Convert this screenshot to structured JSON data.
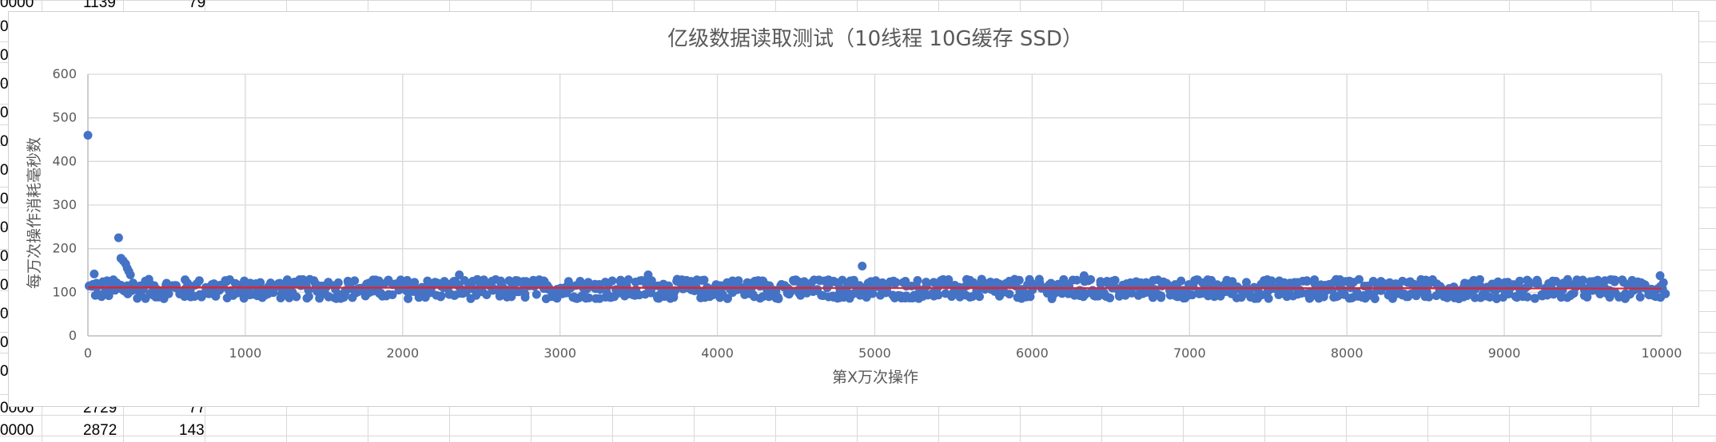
{
  "sheet_cells": [
    {
      "col": "a",
      "text": "0000"
    },
    {
      "col": "b",
      "text": "1139"
    },
    {
      "col": "c",
      "text": "79"
    },
    {
      "col": "a",
      "text": "0000"
    },
    {
      "col": "b",
      "text": "2729"
    },
    {
      "col": "c",
      "text": "77"
    },
    {
      "col": "a",
      "text": "0000"
    },
    {
      "col": "b",
      "text": "2872"
    },
    {
      "col": "c",
      "text": "143"
    },
    {
      "col": "a",
      "text": "0"
    },
    {
      "col": "a",
      "text": "0"
    },
    {
      "col": "a",
      "text": "0"
    },
    {
      "col": "a",
      "text": "0"
    },
    {
      "col": "a",
      "text": "0"
    },
    {
      "col": "a",
      "text": "0"
    },
    {
      "col": "a",
      "text": "0"
    },
    {
      "col": "a",
      "text": "0"
    },
    {
      "col": "a",
      "text": "0"
    },
    {
      "col": "a",
      "text": "0"
    },
    {
      "col": "a",
      "text": "0"
    },
    {
      "col": "a",
      "text": "0"
    },
    {
      "col": "a",
      "text": "0"
    }
  ],
  "chart_data": {
    "type": "scatter",
    "title": "亿级数据读取测试（10线程 10G缓存 SSD）",
    "xlabel": "第X万次操作",
    "ylabel": "每万次操作消耗毫秒数",
    "xlim": [
      0,
      10000
    ],
    "ylim": [
      0,
      600
    ],
    "xticks": [
      0,
      1000,
      2000,
      3000,
      4000,
      5000,
      6000,
      7000,
      8000,
      9000,
      10000
    ],
    "yticks": [
      0,
      100,
      200,
      300,
      400,
      500,
      600
    ],
    "grid": true,
    "legend": "none",
    "point_color": "#4472C4",
    "trendline": {
      "type": "linear",
      "color": "#E3222A",
      "y_start": 111,
      "y_end": 109
    },
    "main_band": {
      "y_low": 85,
      "y_high": 130,
      "x_step": 25
    },
    "outliers": [
      {
        "x": 0,
        "y": 460
      },
      {
        "x": 195,
        "y": 225
      },
      {
        "x": 210,
        "y": 178
      },
      {
        "x": 225,
        "y": 172
      },
      {
        "x": 240,
        "y": 165
      },
      {
        "x": 250,
        "y": 155
      },
      {
        "x": 260,
        "y": 148
      },
      {
        "x": 270,
        "y": 140
      },
      {
        "x": 40,
        "y": 142
      },
      {
        "x": 4920,
        "y": 160
      },
      {
        "x": 2360,
        "y": 140
      },
      {
        "x": 3560,
        "y": 140
      },
      {
        "x": 6330,
        "y": 138
      },
      {
        "x": 9990,
        "y": 138
      }
    ]
  }
}
